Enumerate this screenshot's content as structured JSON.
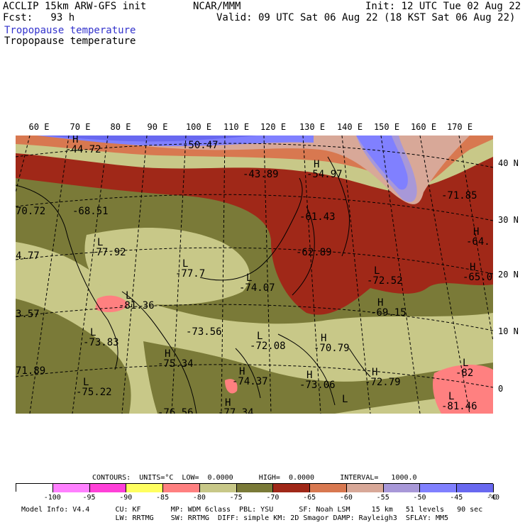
{
  "header": {
    "title_left": "ACCLIP 15km ARW-GFS init",
    "center": "NCAR/MMM",
    "init": "Init: 12 UTC Tue 02 Aug 22",
    "fcst": "Fcst:   93 h",
    "valid": "Valid: 09 UTC Sat 06 Aug 22 (18 KST Sat 06 Aug 22)",
    "field_title_1": "Tropopause temperature",
    "field_title_2": "Tropopause temperature",
    "field_title_1_color": "#3333cc"
  },
  "axes": {
    "lon_labels": [
      "60 E",
      "70 E",
      "80 E",
      "90 E",
      "100 E",
      "110 E",
      "120 E",
      "130 E",
      "140 E",
      "150 E",
      "160 E",
      "170 E"
    ],
    "lat_labels": [
      "40 N",
      "30 N",
      "20 N",
      "10 N",
      "0"
    ]
  },
  "map": {
    "min_max_labels": [
      {
        "letter": "H",
        "value": "-44.72"
      },
      {
        "letter": "",
        "value": "-50.47"
      },
      {
        "letter": "",
        "value": "-43.89"
      },
      {
        "letter": "H",
        "value": "-54.97"
      },
      {
        "letter": "",
        "value": "-71.85"
      },
      {
        "letter": "",
        "value": "70.72"
      },
      {
        "letter": "",
        "value": "-68.51"
      },
      {
        "letter": "",
        "value": "-61.43"
      },
      {
        "letter": "H",
        "value": "-64."
      },
      {
        "letter": "",
        "value": "4.77"
      },
      {
        "letter": "L",
        "value": "-77.92"
      },
      {
        "letter": "L",
        "value": "-77.7"
      },
      {
        "letter": "",
        "value": "-62.89"
      },
      {
        "letter": "H",
        "value": "-65.0"
      },
      {
        "letter": "L",
        "value": "-74.07"
      },
      {
        "letter": "L",
        "value": "-72.52"
      },
      {
        "letter": "L",
        "value": "-81.36"
      },
      {
        "letter": "H",
        "value": "-69.15"
      },
      {
        "letter": "",
        "value": "3.57"
      },
      {
        "letter": "",
        "value": "-73.56"
      },
      {
        "letter": "L",
        "value": "-73.83"
      },
      {
        "letter": "H",
        "value": "-70.79"
      },
      {
        "letter": "L",
        "value": "-72.08"
      },
      {
        "letter": "H",
        "value": "-75.34"
      },
      {
        "letter": "L",
        "value": "-82"
      },
      {
        "letter": "",
        "value": "71.89"
      },
      {
        "letter": "H",
        "value": "-74.37"
      },
      {
        "letter": "H",
        "value": "-73.06"
      },
      {
        "letter": "H",
        "value": "-72.79"
      },
      {
        "letter": "L",
        "value": "-75.22"
      },
      {
        "letter": "L",
        "value": "-81.46"
      },
      {
        "letter": "",
        "value": "-76.56"
      },
      {
        "letter": "H",
        "value": "-77.34"
      },
      {
        "letter": "L",
        "value": ""
      }
    ]
  },
  "legend": {
    "contours_text": "CONTOURS:  UNITS=°C  LOW=  0.0000      HIGH=  0.0000      INTERVAL=   1000.0",
    "colors": [
      "#ffffff",
      "#ff80ff",
      "#ff40d8",
      "#ffff60",
      "#ff8080",
      "#c8c888",
      "#7a7a38",
      "#a02818",
      "#d87850",
      "#d8a898",
      "#a898d8",
      "#8080ff",
      "#6868f0"
    ],
    "labels": [
      "-100",
      "-95",
      "-90",
      "-85",
      "-80",
      "-75",
      "-70",
      "-65",
      "-60",
      "-55",
      "-50",
      "-45",
      "-40"
    ],
    "unit": "°C"
  },
  "footer": {
    "line1": "Model Info: V4.4      CU: KF       MP: WDM 6class  PBL: YSU      SF: Noah LSM     15 km   51 levels   90 sec",
    "line2": "                      LW: RRTMG    SW: RRTMG  DIFF: simple KM: 2D Smagor DAMP: Rayleigh3  SFLAY: MM5"
  }
}
